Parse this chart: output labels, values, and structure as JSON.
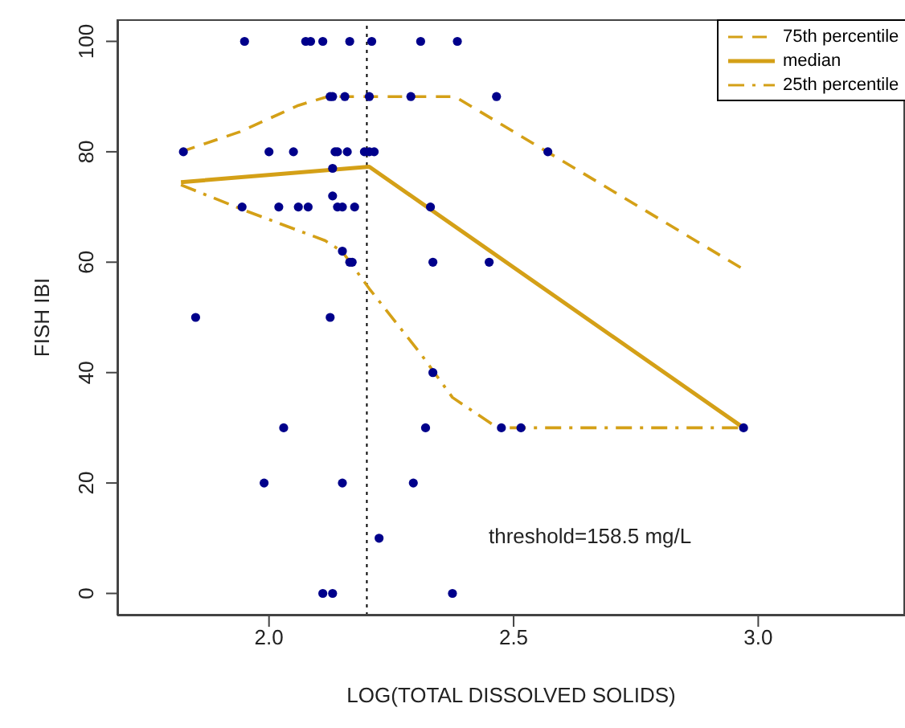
{
  "chart_data": {
    "type": "scatter",
    "xlabel": "LOG(TOTAL DISSOLVED SOLIDS)",
    "ylabel": "FISH IBI",
    "xlim": [
      1.69,
      3.3
    ],
    "xticks": [
      {
        "value": 2,
        "label": "2.0"
      },
      {
        "value": 2.5,
        "label": "2.5"
      },
      {
        "value": 3,
        "label": "3.0"
      }
    ],
    "ylim": [
      -4,
      104
    ],
    "yticks": [
      0,
      20,
      40,
      60,
      80,
      100
    ],
    "grid": false,
    "legend": "top right",
    "ref_lines": [
      {
        "axis": "x",
        "value": 2.2,
        "color": "#000000",
        "line_style": "dotted"
      }
    ],
    "annotations": [
      "threshold=158.5 mg/L"
    ],
    "series": [
      {
        "color": "#00008b",
        "marker": "circle",
        "x": [
          1.95,
          2.075,
          2.085,
          2.11,
          2.165,
          2.21,
          2.31,
          2.385,
          2.125,
          2.13,
          2.155,
          2.205,
          2.29,
          2.465,
          1.825,
          2.0,
          2.05,
          2.135,
          2.14,
          2.16,
          2.195,
          2.205,
          2.215,
          2.57,
          2.13,
          2.13,
          1.945,
          2.02,
          2.06,
          2.08,
          2.14,
          2.15,
          2.175,
          2.33,
          2.15,
          2.165,
          2.17,
          2.335,
          2.45,
          1.85,
          2.125,
          2.335,
          2.03,
          2.32,
          2.475,
          2.515,
          2.97,
          1.99,
          2.15,
          2.295,
          2.225,
          2.11,
          2.13,
          2.375
        ],
        "values": [
          100,
          100,
          100,
          100,
          100,
          100,
          100,
          100,
          90,
          90,
          90,
          90,
          90,
          90,
          80,
          80,
          80,
          80,
          80,
          80,
          80,
          80,
          80,
          80,
          77,
          72,
          70,
          70,
          70,
          70,
          70,
          70,
          70,
          70,
          62,
          60,
          60,
          60,
          60,
          50,
          50,
          40,
          30,
          30,
          30,
          30,
          30,
          20,
          20,
          20,
          10,
          0,
          0,
          0
        ]
      },
      {
        "type": "line",
        "name": "75th percentile",
        "color": "#d4a017",
        "line_style": "dashed",
        "marker": "none",
        "x": [
          1.82,
          1.94,
          2.06,
          2.12,
          2.38,
          2.97
        ],
        "values": [
          80,
          83.6,
          88.4,
          90,
          90,
          58.7
        ]
      },
      {
        "type": "line",
        "name": "median",
        "color": "#d4a017",
        "line_style": "solid",
        "marker": "none",
        "x": [
          1.82,
          2.205,
          2.97
        ],
        "values": [
          74.5,
          77.3,
          30
        ]
      },
      {
        "type": "line",
        "name": "25th percentile",
        "color": "#d4a017",
        "line_style": "dashdot",
        "marker": "none",
        "x": [
          1.82,
          1.95,
          2.115,
          2.15,
          2.205,
          2.31,
          2.375,
          2.467,
          2.97
        ],
        "values": [
          74,
          69.4,
          63.9,
          61.9,
          55.2,
          43.4,
          35.5,
          30,
          30
        ]
      }
    ]
  }
}
